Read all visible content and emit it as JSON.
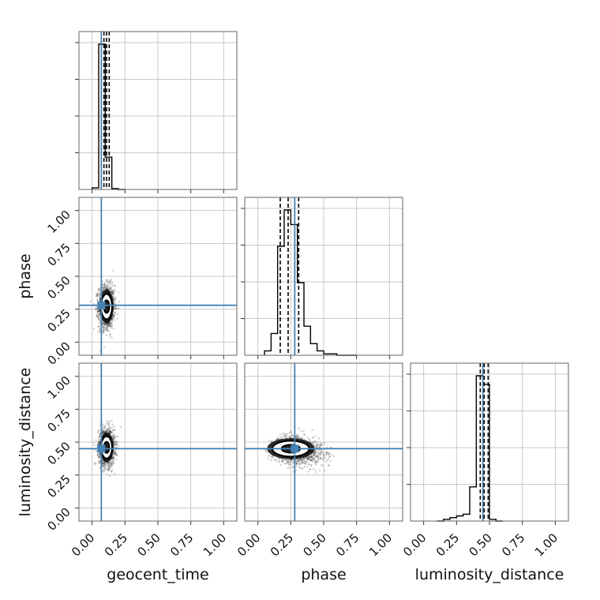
{
  "chart_data": {
    "type": "scatter",
    "subtype": "corner-plot",
    "parameters": [
      "geocent_time",
      "phase",
      "luminosity_distance"
    ],
    "axis_range": [
      -0.1,
      1.1
    ],
    "tick_values": [
      0.0,
      0.25,
      0.5,
      0.75,
      1.0
    ],
    "tick_labels": [
      "0.00",
      "0.25",
      "0.50",
      "0.75",
      "1.00"
    ],
    "grid": true,
    "injection_color": "#4682b4",
    "truths": {
      "geocent_time": 0.07,
      "phase": 0.28,
      "luminosity_distance": 0.45
    },
    "quantiles": {
      "geocent_time": [
        0.09,
        0.11,
        0.13
      ],
      "phase": [
        0.17,
        0.23,
        0.31
      ],
      "luminosity_distance": [
        0.43,
        0.46,
        0.49
      ]
    },
    "histograms": {
      "geocent_time": {
        "bin_edges": [
          0.0,
          0.05,
          0.1,
          0.15,
          0.2,
          0.25
        ],
        "counts": [
          2,
          180,
          40,
          1,
          0
        ]
      },
      "phase": {
        "bin_edges": [
          0.05,
          0.1,
          0.15,
          0.2,
          0.25,
          0.3,
          0.35,
          0.4,
          0.45,
          0.5,
          0.55,
          0.6,
          0.65,
          0.7,
          0.75
        ],
        "counts": [
          3,
          15,
          75,
          100,
          90,
          50,
          20,
          8,
          3,
          1,
          1,
          0,
          0,
          0
        ]
      },
      "luminosity_distance": {
        "bin_edges": [
          0.1,
          0.15,
          0.2,
          0.25,
          0.3,
          0.35,
          0.4,
          0.45,
          0.5,
          0.55,
          0.6
        ],
        "counts": [
          0,
          1,
          2,
          3,
          4,
          20,
          85,
          80,
          1,
          0
        ]
      }
    },
    "scatter_clouds": {
      "phase_vs_geocent_time": {
        "center_x": 0.11,
        "center_y": 0.27,
        "spread_x": 0.03,
        "spread_y": 0.08
      },
      "luminosity_distance_vs_geocent_time": {
        "center_x": 0.11,
        "center_y": 0.46,
        "spread_x": 0.03,
        "spread_y": 0.07
      },
      "luminosity_distance_vs_phase": {
        "center_x": 0.25,
        "center_y": 0.45,
        "spread_x": 0.1,
        "spread_y": 0.05
      }
    }
  }
}
